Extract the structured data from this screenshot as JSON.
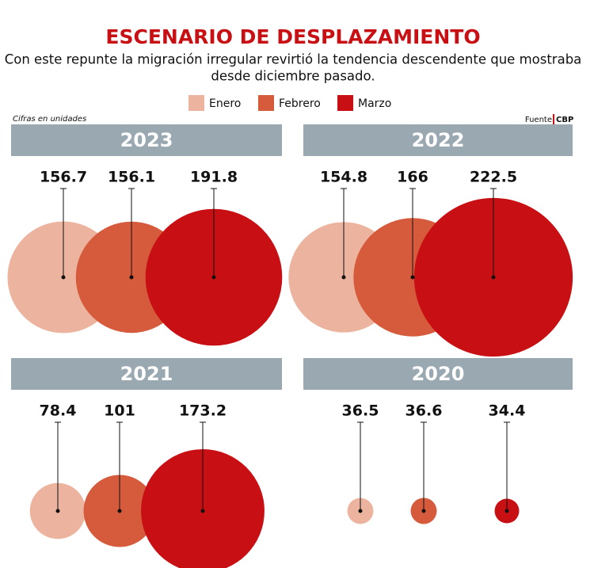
{
  "chart_data": {
    "type": "bubble",
    "title": "ESCENARIO DE DESPLAZAMIENTO",
    "subtitle": [
      "Con este repunte la migración irregular revirtió la tendencia descendente que mostraba",
      "desde diciembre pasado."
    ],
    "note": "Cifras en unidades",
    "source": {
      "label": "Fuente",
      "name": "CBP"
    },
    "categories": [
      "2023",
      "2022",
      "2021",
      "2020"
    ],
    "series": [
      {
        "name": "Enero",
        "color": "#ecb49e",
        "values": [
          156.7,
          154.8,
          78.4,
          36.5
        ]
      },
      {
        "name": "Febrero",
        "color": "#d65a3c",
        "values": [
          156.1,
          166,
          101,
          36.6
        ]
      },
      {
        "name": "Marzo",
        "color": "#c81014",
        "values": [
          191.8,
          222.5,
          173.2,
          34.4
        ]
      }
    ]
  }
}
